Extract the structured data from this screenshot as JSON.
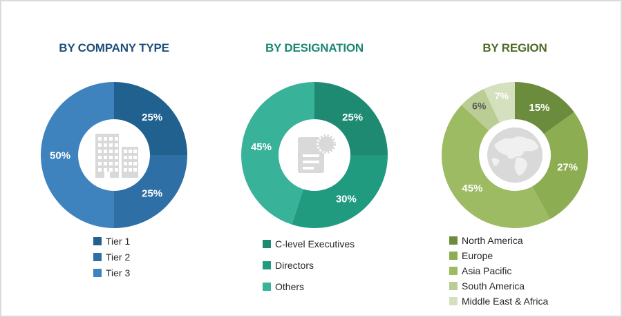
{
  "chart_data": [
    {
      "type": "pie",
      "subtype": "donut",
      "title": "BY COMPANY TYPE",
      "title_color": "#1F4E79",
      "center_icon": "buildings-icon",
      "icon_color": "#D9D9D9",
      "start_angle_deg": 0,
      "direction": "clockwise",
      "slices": [
        {
          "label": "Tier 1",
          "value": 25,
          "color": "#20618F",
          "text_color": "#FFFFFF",
          "data_label": "25%"
        },
        {
          "label": "Tier 2",
          "value": 25,
          "color": "#2E6FA6",
          "text_color": "#FFFFFF",
          "data_label": "25%"
        },
        {
          "label": "Tier 3",
          "value": 50,
          "color": "#3F83BE",
          "text_color": "#FFFFFF",
          "data_label": "50%"
        }
      ],
      "legend_position": "bottom-left"
    },
    {
      "type": "pie",
      "subtype": "donut",
      "title": "BY DESIGNATION",
      "title_color": "#1B8871",
      "center_icon": "document-certificate-icon",
      "icon_color": "#D9D9D9",
      "start_angle_deg": 0,
      "direction": "clockwise",
      "slices": [
        {
          "label": "C-level Executives",
          "value": 25,
          "color": "#1F8A72",
          "text_color": "#FFFFFF",
          "data_label": "25%"
        },
        {
          "label": "Directors",
          "value": 30,
          "color": "#219B80",
          "text_color": "#FFFFFF",
          "data_label": "30%"
        },
        {
          "label": "Others",
          "value": 45,
          "color": "#39B29A",
          "text_color": "#FFFFFF",
          "data_label": "45%"
        }
      ],
      "legend_position": "bottom-left"
    },
    {
      "type": "pie",
      "subtype": "donut",
      "title": "BY REGION",
      "title_color": "#4E6A28",
      "center_icon": "globe-icon",
      "icon_color": "#D9D9D9",
      "start_angle_deg": 0,
      "direction": "clockwise",
      "slices": [
        {
          "label": "North America",
          "value": 15,
          "color": "#6B8C3C",
          "text_color": "#FFFFFF",
          "data_label": "15%"
        },
        {
          "label": "Europe",
          "value": 27,
          "color": "#8CAD52",
          "text_color": "#FFFFFF",
          "data_label": "27%"
        },
        {
          "label": "Asia Pacific",
          "value": 45,
          "color": "#9CBB62",
          "text_color": "#FFFFFF",
          "data_label": "45%"
        },
        {
          "label": "South America",
          "value": 6,
          "color": "#B9CD94",
          "text_color": "#595959",
          "data_label": "6%"
        },
        {
          "label": "Middle East & Africa",
          "value": 7,
          "color": "#D5E0BF",
          "text_color": "#FFFFFF",
          "data_label": "7%"
        }
      ],
      "legend_position": "bottom-left"
    }
  ]
}
